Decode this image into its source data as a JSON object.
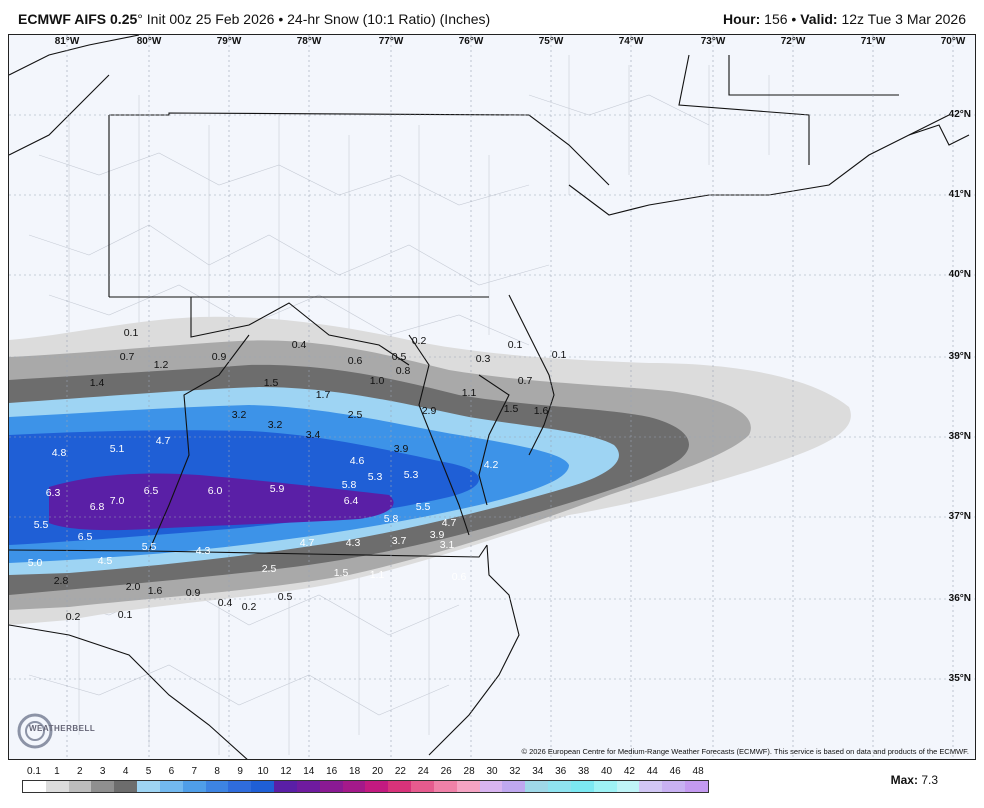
{
  "header": {
    "model": "ECMWF AIFS 0.25",
    "degree": "°",
    "init": "Init 00z 25 Feb 2026",
    "bullet": "•",
    "product": "24-hr Snow (10:1 Ratio) (Inches)",
    "hour_label": "Hour:",
    "hour_value": "156",
    "valid_label": "Valid:",
    "valid_value": "12z Tue 3 Mar 2026"
  },
  "lon_labels": [
    "81°W",
    "80°W",
    "79°W",
    "78°W",
    "77°W",
    "76°W",
    "75°W",
    "74°W",
    "73°W",
    "72°W",
    "71°W",
    "70°W"
  ],
  "lat_labels": [
    "42°N",
    "41°N",
    "40°N",
    "39°N",
    "38°N",
    "37°N",
    "36°N",
    "35°N"
  ],
  "colors": {
    "map_background": "#f3f6fc",
    "land_lines": "#111111",
    "county_lines": "#b9bfca",
    "snow_light_gray": "#dcdcdc",
    "snow_mid_gray": "#a9a9a9",
    "snow_dark_gray": "#6d6d6d",
    "snow_light_blue": "#9ed4f3",
    "snow_blue": "#3d93e8",
    "snow_deep_blue": "#1f5fd6",
    "snow_purple": "#5a1fa6"
  },
  "snow_values": [
    {
      "t": "0.1"
    },
    {
      "t": "0.4"
    },
    {
      "t": "0.2"
    },
    {
      "t": "0.1"
    },
    {
      "t": "0.1"
    },
    {
      "t": "0.7"
    },
    {
      "t": "1.2"
    },
    {
      "t": "0.9"
    },
    {
      "t": "0.6"
    },
    {
      "t": "0.5"
    },
    {
      "t": "0.8"
    },
    {
      "t": "0.3"
    },
    {
      "t": "1.4"
    },
    {
      "t": "1.5"
    },
    {
      "t": "1.7"
    },
    {
      "t": "1.0"
    },
    {
      "t": "1.1"
    },
    {
      "t": "0.7"
    },
    {
      "t": "2.5"
    },
    {
      "t": "2.9"
    },
    {
      "t": "1.5"
    },
    {
      "t": "1.6"
    },
    {
      "t": "3.2"
    },
    {
      "t": "3.2"
    },
    {
      "t": "3.4"
    },
    {
      "t": "3.9"
    },
    {
      "t": "4.8"
    },
    {
      "t": "5.1"
    },
    {
      "t": "4.7"
    },
    {
      "t": "4.6"
    },
    {
      "t": "4.2"
    },
    {
      "t": "5.3"
    },
    {
      "t": "5.3"
    },
    {
      "t": "5.8"
    },
    {
      "t": "6.3"
    },
    {
      "t": "7.0"
    },
    {
      "t": "6.8"
    },
    {
      "t": "6.5"
    },
    {
      "t": "6.0"
    },
    {
      "t": "5.9"
    },
    {
      "t": "6.4"
    },
    {
      "t": "5.5"
    },
    {
      "t": "5.5"
    },
    {
      "t": "5.8"
    },
    {
      "t": "4.7"
    },
    {
      "t": "3.9"
    },
    {
      "t": "6.5"
    },
    {
      "t": "5.5"
    },
    {
      "t": "4.3"
    },
    {
      "t": "4.7"
    },
    {
      "t": "4.3"
    },
    {
      "t": "3.7"
    },
    {
      "t": "3.1"
    },
    {
      "t": "5.0"
    },
    {
      "t": "4.5"
    },
    {
      "t": "2.5"
    },
    {
      "t": "1.5"
    },
    {
      "t": "1.1"
    },
    {
      "t": "0.6"
    },
    {
      "t": "2.8"
    },
    {
      "t": "2.0"
    },
    {
      "t": "1.6"
    },
    {
      "t": "0.9"
    },
    {
      "t": "0.4"
    },
    {
      "t": "0.2"
    },
    {
      "t": "0.5"
    },
    {
      "t": "0.2"
    },
    {
      "t": "0.1"
    }
  ],
  "copyright": "© 2026 European Centre for Medium-Range Weather Forecasts (ECMWF). This service is based on data and products of the ECMWF.",
  "logo_text": "WEATHERBELL",
  "legend": {
    "ticks": [
      "0.1",
      "1",
      "2",
      "3",
      "4",
      "5",
      "6",
      "7",
      "8",
      "9",
      "10",
      "12",
      "14",
      "16",
      "18",
      "20",
      "22",
      "24",
      "26",
      "28",
      "30",
      "32",
      "34",
      "36",
      "38",
      "40",
      "42",
      "44",
      "46",
      "48"
    ],
    "colors": [
      "#ffffff",
      "#dcdcdc",
      "#bdbdbd",
      "#8f8f8f",
      "#6d6d6d",
      "#9ed4f3",
      "#72b8ef",
      "#4f9ee8",
      "#3d84e2",
      "#2f6cdc",
      "#1f5fd6",
      "#5a1fa6",
      "#6f1b9f",
      "#8a1a93",
      "#a4198a",
      "#c31a80",
      "#d8337a",
      "#e65b8e",
      "#f081a8",
      "#f5a4c3",
      "#d8b4f0",
      "#bfa8ef",
      "#9fd8e8",
      "#8fe3f0",
      "#7ce8f2",
      "#9ef2f5",
      "#bff4f7",
      "#d1c7f4",
      "#c8b1f2",
      "#c49af0"
    ],
    "max_label": "Max:",
    "max_value": "7.3"
  }
}
